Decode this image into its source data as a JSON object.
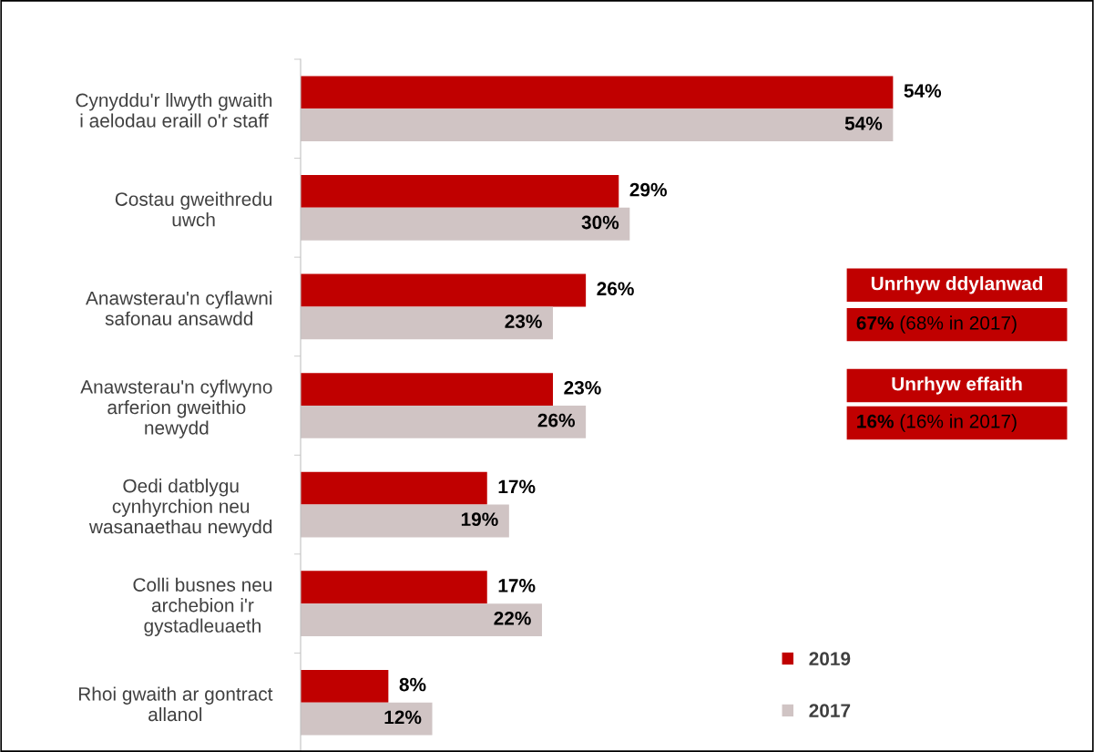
{
  "chart_data": {
    "type": "bar",
    "orientation": "horizontal",
    "categories": [
      "Cynyddu'r llwyth gwaith\ni aelodau eraill o'r staff",
      "Costau gweithredu\nuwch",
      "Anawsterau'n cyflawni\nsafonau ansawdd",
      "Anawsterau'n cyflwyno\narferion gweithio\nnewydd",
      "Oedi datblygu\ncynhyrchion neu\nwasanaethau newydd",
      "Colli busnes neu\narchebion i'r\ngystadleuaeth",
      "Rhoi gwaith ar gontract\nallanol"
    ],
    "series": [
      {
        "name": "2019",
        "color": "#c00000",
        "values": [
          54,
          29,
          26,
          23,
          17,
          17,
          8
        ],
        "value_labels": [
          "54%",
          "29%",
          "26%",
          "23%",
          "17%",
          "17%",
          "8%"
        ]
      },
      {
        "name": "2017",
        "color": "#d0c4c4",
        "values": [
          54,
          30,
          23,
          26,
          19,
          22,
          12
        ],
        "value_labels": [
          "54%",
          "30%",
          "23%",
          "26%",
          "19%",
          "22%",
          "12%"
        ]
      }
    ],
    "annotations": [
      "Unrhyw ddylanwad",
      "67% (68% in 2017)",
      "Unrhyw effaith",
      "16% (16% in 2017)"
    ],
    "legend": "bottom right",
    "grid": false
  }
}
